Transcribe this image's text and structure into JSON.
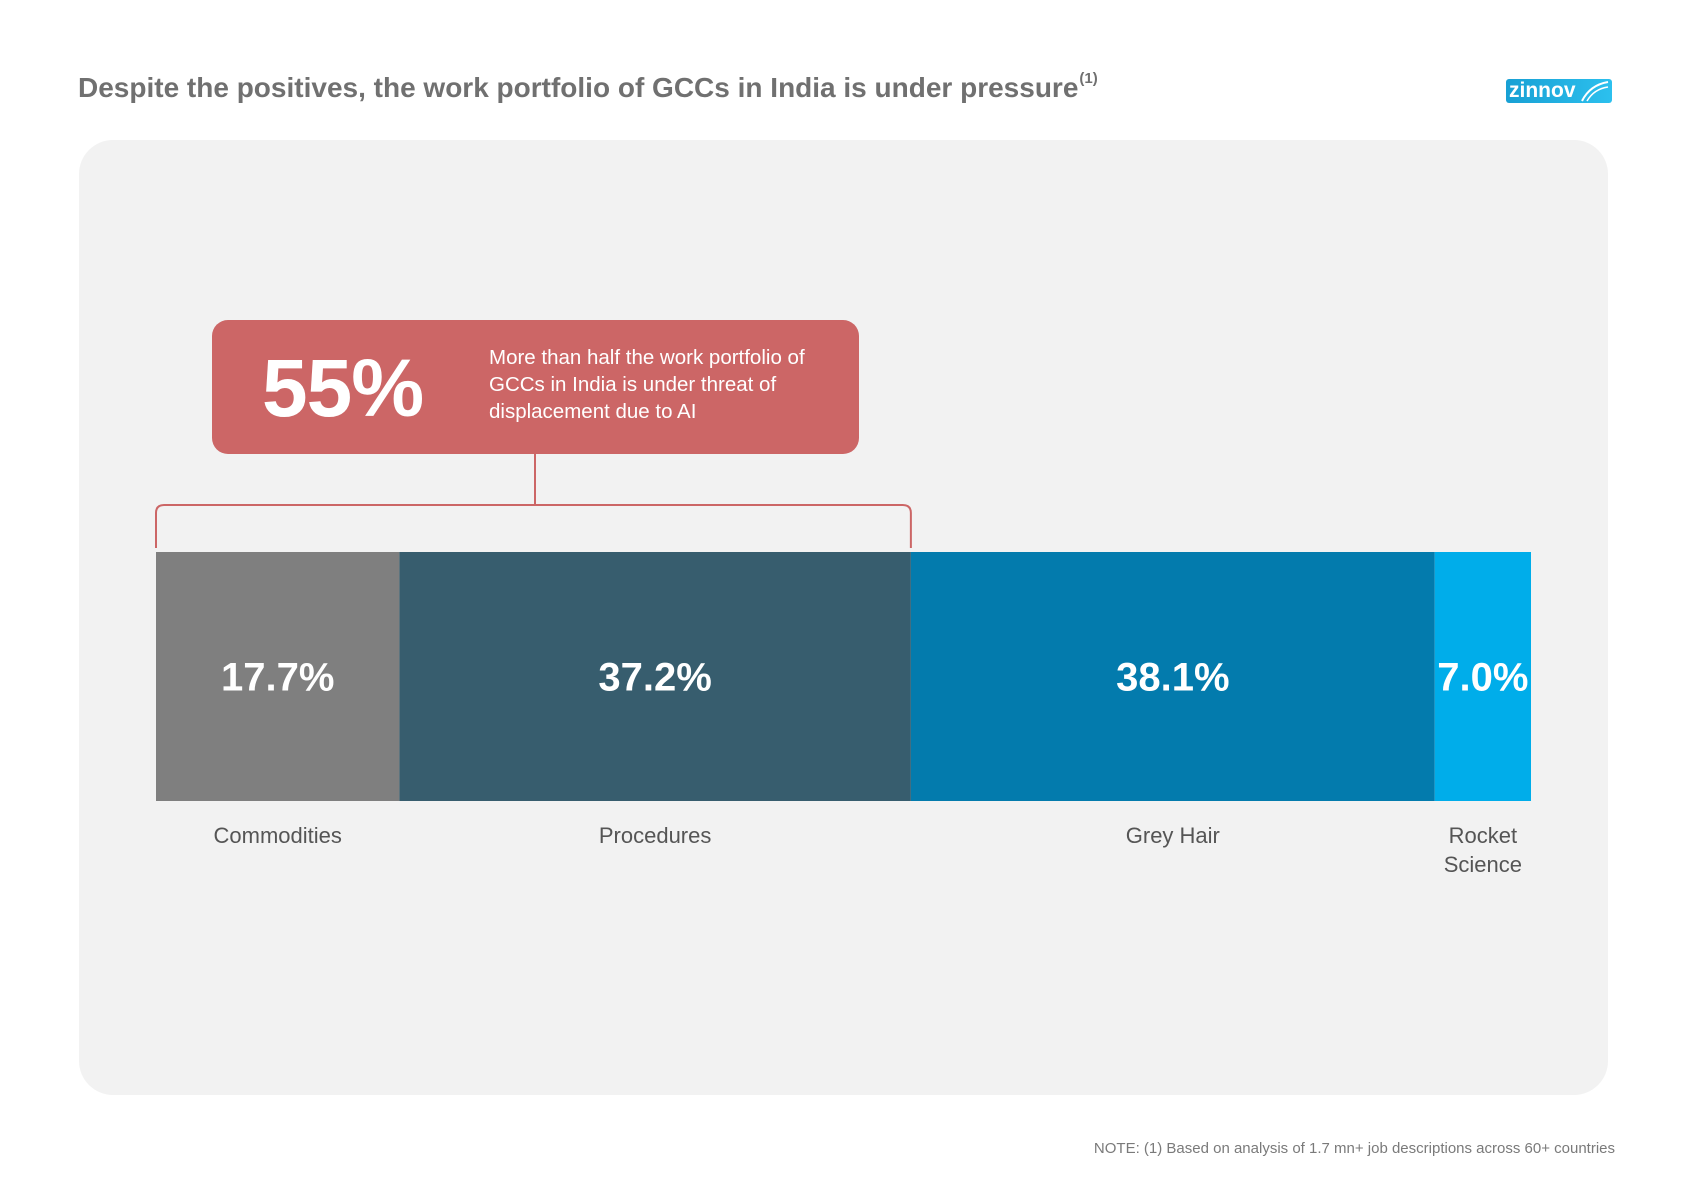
{
  "title": "Despite the positives, the work portfolio of GCCs in India is under pressure",
  "title_superscript": "(1)",
  "logo_text": "zinnov",
  "callout": {
    "value": "55%",
    "text": "More than half the work portfolio of GCCs in India is under threat of displacement due to AI"
  },
  "chart_data": {
    "type": "bar",
    "orientation": "horizontal-stacked",
    "categories": [
      "Commodities",
      "Procedures",
      "Grey Hair",
      "Rocket Science"
    ],
    "values": [
      17.7,
      37.2,
      38.1,
      7.0
    ],
    "labels": [
      "17.7%",
      "37.2%",
      "38.1%",
      "7.0%"
    ],
    "colors": [
      "#7f7f7f",
      "#375d6e",
      "#037bad",
      "#00adea"
    ],
    "bracket_covers": [
      "Commodities",
      "Procedures"
    ],
    "bracket_color": "#cc6666"
  },
  "note": "NOTE: (1) Based on analysis of 1.7 mn+ job descriptions across 60+ countries"
}
